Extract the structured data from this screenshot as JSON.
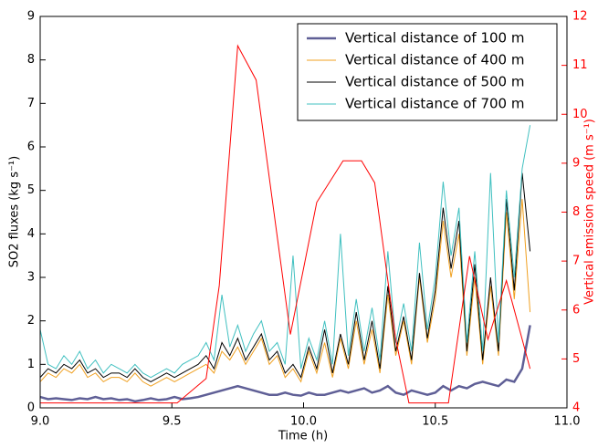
{
  "chart_data": {
    "type": "line",
    "xlabel": "Time (h)",
    "ylabel": "SO2 fluxes (kg s⁻¹)",
    "y2label": "Vertical emission speed (m s⁻¹)",
    "x": [
      9.0,
      9.03,
      9.06,
      9.09,
      9.12,
      9.15,
      9.18,
      9.21,
      9.24,
      9.27,
      9.3,
      9.33,
      9.36,
      9.39,
      9.42,
      9.45,
      9.48,
      9.51,
      9.54,
      9.57,
      9.6,
      9.63,
      9.66,
      9.69,
      9.72,
      9.75,
      9.78,
      9.81,
      9.84,
      9.87,
      9.9,
      9.93,
      9.96,
      9.99,
      10.02,
      10.05,
      10.08,
      10.11,
      10.14,
      10.17,
      10.2,
      10.23,
      10.26,
      10.29,
      10.32,
      10.35,
      10.38,
      10.41,
      10.44,
      10.47,
      10.5,
      10.53,
      10.56,
      10.59,
      10.62,
      10.65,
      10.68,
      10.71,
      10.74,
      10.77,
      10.8,
      10.83,
      10.86
    ],
    "series": [
      {
        "name": "Vertical distance of 100 m",
        "color": "#5f5f96",
        "values": [
          0.25,
          0.2,
          0.22,
          0.2,
          0.18,
          0.22,
          0.2,
          0.25,
          0.2,
          0.22,
          0.18,
          0.2,
          0.15,
          0.18,
          0.22,
          0.18,
          0.2,
          0.25,
          0.2,
          0.22,
          0.25,
          0.3,
          0.35,
          0.4,
          0.45,
          0.5,
          0.45,
          0.4,
          0.35,
          0.3,
          0.3,
          0.35,
          0.3,
          0.28,
          0.35,
          0.3,
          0.3,
          0.35,
          0.4,
          0.35,
          0.4,
          0.45,
          0.35,
          0.4,
          0.5,
          0.35,
          0.3,
          0.4,
          0.35,
          0.3,
          0.35,
          0.5,
          0.4,
          0.5,
          0.45,
          0.55,
          0.6,
          0.55,
          0.5,
          0.65,
          0.6,
          0.9,
          1.9
        ]
      },
      {
        "name": "Vertical distance of 400 m",
        "color": "#f0a020",
        "values": [
          0.6,
          0.8,
          0.7,
          0.9,
          0.8,
          1.0,
          0.7,
          0.8,
          0.6,
          0.7,
          0.7,
          0.6,
          0.8,
          0.6,
          0.5,
          0.6,
          0.7,
          0.6,
          0.7,
          0.8,
          0.9,
          1.0,
          0.8,
          1.3,
          1.1,
          1.4,
          1.0,
          1.3,
          1.6,
          1.0,
          1.2,
          0.7,
          0.9,
          0.6,
          1.3,
          0.8,
          1.5,
          0.7,
          1.6,
          0.9,
          2.0,
          1.0,
          1.8,
          0.8,
          2.6,
          1.2,
          2.0,
          1.0,
          3.0,
          1.5,
          2.5,
          4.3,
          3.0,
          4.0,
          1.2,
          3.0,
          1.0,
          2.8,
          1.2,
          4.5,
          2.5,
          4.8,
          2.2
        ]
      },
      {
        "name": "Vertical distance of 500 m",
        "color": "#000000",
        "values": [
          0.7,
          0.9,
          0.8,
          1.0,
          0.9,
          1.1,
          0.8,
          0.9,
          0.7,
          0.8,
          0.8,
          0.7,
          0.9,
          0.7,
          0.6,
          0.7,
          0.8,
          0.7,
          0.8,
          0.9,
          1.0,
          1.2,
          0.9,
          1.5,
          1.2,
          1.6,
          1.1,
          1.4,
          1.7,
          1.1,
          1.3,
          0.8,
          1.0,
          0.7,
          1.4,
          0.9,
          1.8,
          0.8,
          1.7,
          1.0,
          2.2,
          1.1,
          2.0,
          0.9,
          2.8,
          1.3,
          2.1,
          1.1,
          3.1,
          1.6,
          2.7,
          4.6,
          3.2,
          4.3,
          1.3,
          3.3,
          1.1,
          3.0,
          1.3,
          4.8,
          2.7,
          5.4,
          3.6
        ]
      },
      {
        "name": "Vertical distance of 700 m",
        "color": "#40c0c0",
        "values": [
          1.8,
          1.0,
          0.9,
          1.2,
          1.0,
          1.3,
          0.9,
          1.1,
          0.8,
          1.0,
          0.9,
          0.8,
          1.0,
          0.8,
          0.7,
          0.8,
          0.9,
          0.8,
          1.0,
          1.1,
          1.2,
          1.5,
          1.1,
          2.6,
          1.4,
          1.9,
          1.3,
          1.7,
          2.0,
          1.3,
          1.5,
          1.0,
          3.5,
          0.9,
          1.6,
          1.1,
          2.0,
          1.0,
          4.0,
          1.2,
          2.5,
          1.3,
          2.3,
          1.1,
          3.6,
          1.5,
          2.4,
          1.3,
          3.8,
          1.8,
          3.0,
          5.2,
          3.5,
          4.6,
          1.5,
          3.6,
          1.3,
          5.4,
          1.5,
          5.0,
          3.0,
          5.5,
          6.5
        ]
      },
      {
        "color": "#ff0000",
        "axis": "y2",
        "x": [
          9.0,
          9.52,
          9.63,
          9.68,
          9.75,
          9.82,
          9.95,
          10.05,
          10.15,
          10.22,
          10.27,
          10.35,
          10.4,
          10.55,
          10.63,
          10.7,
          10.77,
          10.86
        ],
        "values": [
          4.1,
          4.1,
          4.6,
          6.5,
          11.4,
          10.7,
          5.5,
          8.2,
          9.05,
          9.05,
          8.6,
          5.4,
          4.1,
          4.1,
          7.1,
          5.4,
          6.6,
          4.8
        ]
      }
    ],
    "xlim": [
      9,
      11
    ],
    "xticks": [
      {
        "value": 9,
        "label": "9.0"
      },
      9.5,
      {
        "value": 10,
        "label": "10.0"
      },
      10.5,
      {
        "value": 11,
        "label": "11.0"
      }
    ],
    "ylim": [
      0,
      9
    ],
    "yticks": [
      0,
      1,
      2,
      3,
      4,
      5,
      6,
      7,
      8,
      9
    ],
    "y2lim": [
      4,
      12
    ],
    "y2ticks": [
      4,
      5,
      6,
      7,
      8,
      9,
      10,
      11,
      12
    ],
    "y2color": "#ff0000",
    "legend": "upper right"
  }
}
